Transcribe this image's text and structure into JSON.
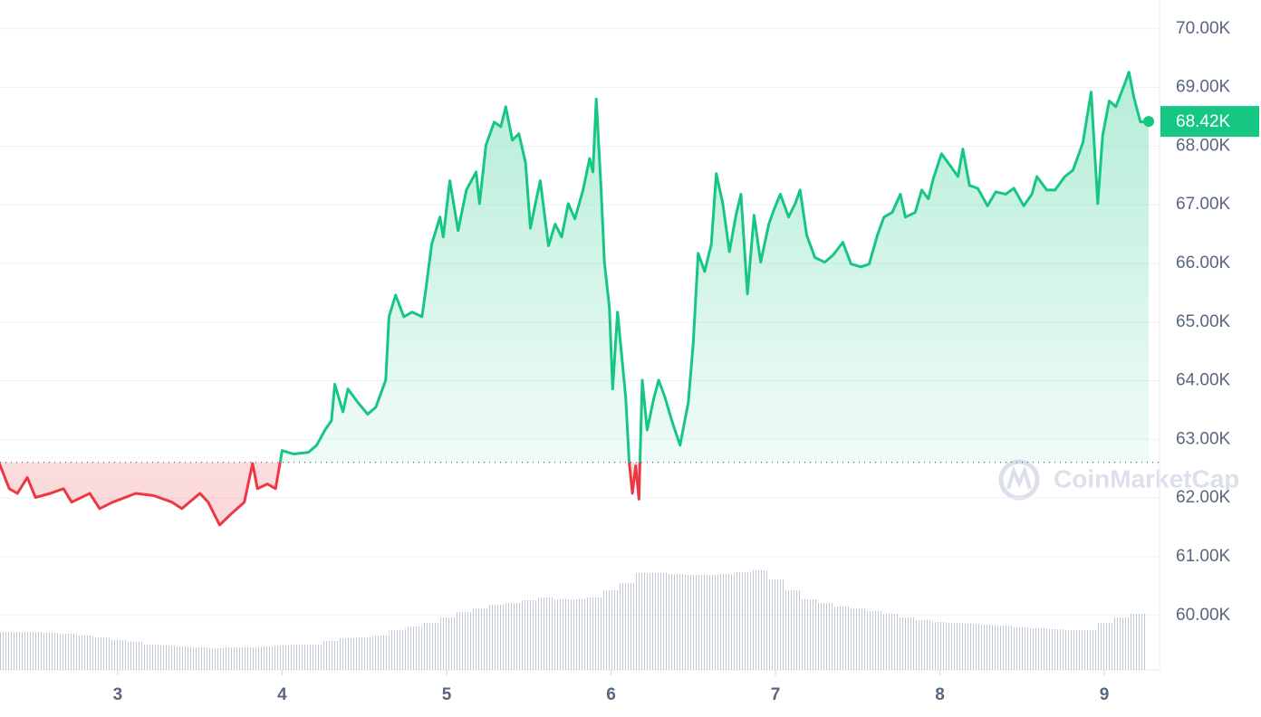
{
  "chart_data": {
    "type": "line",
    "x": [
      2.28,
      2.34,
      2.39,
      2.45,
      2.5,
      2.59,
      2.67,
      2.72,
      2.83,
      2.89,
      2.97,
      3.11,
      3.22,
      3.33,
      3.39,
      3.5,
      3.55,
      3.62,
      3.69,
      3.77,
      3.82,
      3.85,
      3.91,
      3.96,
      4.0,
      4.07,
      4.16,
      4.21,
      4.26,
      4.3,
      4.32,
      4.37,
      4.4,
      4.46,
      4.52,
      4.57,
      4.63,
      4.65,
      4.69,
      4.74,
      4.79,
      4.85,
      4.87,
      4.91,
      4.96,
      4.98,
      5.02,
      5.07,
      5.12,
      5.18,
      5.2,
      5.24,
      5.29,
      5.33,
      5.36,
      5.4,
      5.44,
      5.48,
      5.51,
      5.54,
      5.57,
      5.62,
      5.66,
      5.7,
      5.74,
      5.78,
      5.83,
      5.87,
      5.89,
      5.91,
      5.94,
      5.96,
      5.99,
      6.01,
      6.04,
      6.09,
      6.11,
      6.13,
      6.15,
      6.17,
      6.19,
      6.22,
      6.26,
      6.29,
      6.33,
      6.37,
      6.42,
      6.47,
      6.5,
      6.53,
      6.57,
      6.61,
      6.64,
      6.68,
      6.72,
      6.76,
      6.79,
      6.83,
      6.87,
      6.91,
      6.96,
      6.99,
      7.03,
      7.08,
      7.12,
      7.15,
      7.19,
      7.24,
      7.3,
      7.35,
      7.41,
      7.46,
      7.52,
      7.57,
      7.62,
      7.66,
      7.71,
      7.76,
      7.79,
      7.85,
      7.89,
      7.93,
      7.96,
      8.01,
      8.07,
      8.11,
      8.14,
      8.18,
      8.23,
      8.29,
      8.34,
      8.4,
      8.45,
      8.51,
      8.56,
      8.59,
      8.65,
      8.7,
      8.76,
      8.81,
      8.87,
      8.92,
      8.96,
      8.99,
      9.03,
      9.07,
      9.12,
      9.15,
      9.18,
      9.22,
      9.27
    ],
    "values": [
      62.59,
      62.16,
      62.08,
      62.35,
      62.01,
      62.08,
      62.16,
      61.93,
      62.08,
      61.82,
      61.93,
      62.08,
      62.04,
      61.93,
      61.82,
      62.08,
      61.93,
      61.54,
      61.73,
      61.93,
      62.59,
      62.16,
      62.24,
      62.16,
      62.81,
      62.75,
      62.78,
      62.9,
      63.16,
      63.32,
      63.94,
      63.47,
      63.86,
      63.63,
      63.43,
      63.55,
      64.01,
      65.09,
      65.46,
      65.09,
      65.17,
      65.09,
      65.48,
      66.33,
      66.79,
      66.45,
      67.41,
      66.56,
      67.25,
      67.56,
      67.02,
      68.02,
      68.41,
      68.33,
      68.67,
      68.1,
      68.21,
      67.72,
      66.6,
      67.02,
      67.41,
      66.3,
      66.67,
      66.45,
      67.02,
      66.76,
      67.25,
      67.79,
      67.56,
      68.8,
      67.25,
      66.02,
      65.25,
      63.86,
      65.17,
      63.7,
      62.62,
      62.08,
      62.55,
      61.98,
      64.01,
      63.16,
      63.7,
      64.01,
      63.7,
      63.32,
      62.9,
      63.63,
      64.63,
      66.17,
      65.86,
      66.33,
      67.53,
      67.02,
      66.2,
      66.82,
      67.18,
      65.48,
      66.82,
      66.02,
      66.67,
      66.91,
      67.18,
      66.79,
      67.02,
      67.25,
      66.48,
      66.1,
      66.02,
      66.14,
      66.36,
      65.99,
      65.94,
      65.99,
      66.48,
      66.79,
      66.87,
      67.18,
      66.79,
      66.87,
      67.25,
      67.1,
      67.44,
      67.87,
      67.64,
      67.48,
      67.95,
      67.33,
      67.28,
      66.98,
      67.22,
      67.18,
      67.28,
      66.98,
      67.18,
      67.48,
      67.25,
      67.25,
      67.48,
      67.59,
      68.06,
      68.92,
      67.02,
      68.18,
      68.77,
      68.67,
      69.03,
      69.26,
      68.83,
      68.41,
      68.42
    ],
    "baseline": 62.61,
    "up_color": "#16c784",
    "down_color": "#ea3943",
    "volume": {
      "axis": "y2",
      "color": "#a6b0c3",
      "x": [
        2.3,
        2.4,
        2.5,
        2.6,
        2.7,
        2.8,
        2.9,
        3.0,
        3.1,
        3.2,
        3.3,
        3.4,
        3.5,
        3.6,
        3.7,
        3.8,
        3.9,
        4.0,
        4.1,
        4.2,
        4.3,
        4.4,
        4.5,
        4.6,
        4.7,
        4.8,
        4.9,
        5.0,
        5.1,
        5.2,
        5.3,
        5.4,
        5.5,
        5.6,
        5.7,
        5.8,
        5.9,
        6.0,
        6.1,
        6.2,
        6.3,
        6.4,
        6.5,
        6.6,
        6.7,
        6.8,
        6.9,
        7.0,
        7.1,
        7.2,
        7.3,
        7.4,
        7.5,
        7.6,
        7.7,
        7.8,
        7.9,
        8.0,
        8.1,
        8.2,
        8.3,
        8.4,
        8.5,
        8.6,
        8.7,
        8.8,
        8.9,
        9.0,
        9.1,
        9.2
      ],
      "values": [
        42,
        42,
        42,
        41,
        40,
        38,
        36,
        33,
        31,
        28,
        27,
        26,
        25,
        24,
        25,
        25,
        26,
        27,
        28,
        28,
        32,
        35,
        36,
        38,
        44,
        48,
        52,
        58,
        64,
        68,
        72,
        74,
        77,
        80,
        78,
        78,
        80,
        88,
        96,
        107,
        107,
        106,
        105,
        105,
        106,
        108,
        110,
        100,
        88,
        78,
        74,
        70,
        68,
        65,
        62,
        58,
        55,
        53,
        52,
        51,
        50,
        49,
        47,
        46,
        45,
        44,
        44,
        52,
        58,
        62
      ]
    },
    "y2lim": [
      0,
      740
    ],
    "xlim": [
      2.284,
      9.336
    ],
    "xticks": [
      3,
      4,
      5,
      6,
      7,
      8,
      9
    ],
    "ylim": [
      59.07,
      70.49
    ],
    "yticks": [
      {
        "value": 60,
        "label": "60.00K"
      },
      {
        "value": 61,
        "label": "61.00K"
      },
      {
        "value": 62,
        "label": "62.00K"
      },
      {
        "value": 63,
        "label": "63.00K"
      },
      {
        "value": 64,
        "label": "64.00K"
      },
      {
        "value": 65,
        "label": "65.00K"
      },
      {
        "value": 66,
        "label": "66.00K"
      },
      {
        "value": 67,
        "label": "67.00K"
      },
      {
        "value": 68,
        "label": "68.00K"
      },
      {
        "value": 69,
        "label": "69.00K"
      },
      {
        "value": 70,
        "label": "70.00K"
      }
    ],
    "grid": true,
    "last_price": {
      "value": 68.42,
      "label": "68.42K"
    },
    "watermark": "CoinMarketCap"
  }
}
